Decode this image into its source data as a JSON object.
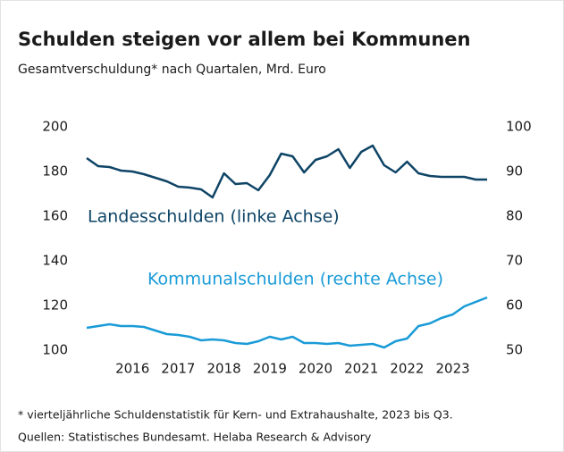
{
  "chart_data": {
    "type": "line",
    "title": "Schulden steigen vor allem bei Kommunen",
    "subtitle": "Gesamtverschuldung* nach Quartalen, Mrd. Euro",
    "footnotes": [
      "* vierteljährliche Schuldenstatistik für Kern- und Extrahaushalte, 2023 bis Q3.",
      "Quellen: Statistisches Bundesamt. Helaba Research & Advisory"
    ],
    "categories": [
      null,
      null,
      null,
      null,
      "2016",
      null,
      null,
      null,
      "2017",
      null,
      null,
      null,
      "2018",
      null,
      null,
      null,
      "2019",
      null,
      null,
      null,
      "2020",
      null,
      null,
      null,
      "2021",
      null,
      null,
      null,
      "2022",
      null,
      null,
      null,
      "2023",
      null,
      null,
      null
    ],
    "series": [
      {
        "name": "Landesschulden (linke Achse)",
        "color": "#0e4466",
        "axis": "y",
        "values": [
          186,
          182.4,
          182,
          180.4,
          180,
          178.8,
          177.2,
          175.6,
          173.2,
          172.8,
          172,
          168.4,
          179.2,
          174.4,
          174.8,
          171.6,
          178.4,
          188,
          186.8,
          179.6,
          185.2,
          186.8,
          190,
          181.6,
          188.8,
          191.6,
          182.8,
          179.6,
          184.4,
          179.2,
          178,
          177.6,
          177.6,
          177.6,
          176.4,
          176.4
        ]
      },
      {
        "name": "Kommunalschulden (rechte Achse)",
        "color": "#1a9bd7",
        "axis": "y2",
        "values": [
          55,
          55.4,
          55.8,
          55.4,
          55.4,
          55.2,
          54.4,
          53.6,
          53.4,
          53,
          52.2,
          52.4,
          52.2,
          51.6,
          51.4,
          52,
          53,
          52.4,
          53,
          51.6,
          51.6,
          51.4,
          51.6,
          51,
          51.2,
          51.4,
          50.6,
          52,
          52.6,
          55.4,
          56,
          57.2,
          58,
          59.8,
          60.8,
          61.8
        ]
      }
    ],
    "ylim": [
      100,
      200
    ],
    "yticks": [
      100,
      120,
      140,
      160,
      180,
      200
    ],
    "y2lim": [
      50,
      100
    ],
    "y2ticks": [
      50,
      60,
      70,
      80,
      90,
      100
    ],
    "grid": false,
    "legend": false
  }
}
